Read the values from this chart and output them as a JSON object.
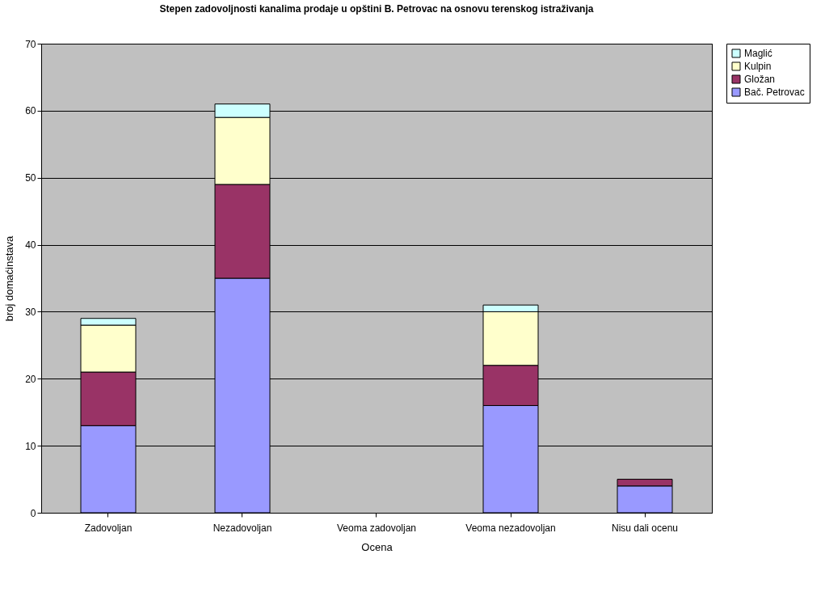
{
  "chart_data": {
    "type": "bar",
    "stacked": true,
    "title": "Stepen zadovoljnosti kanalima prodaje u opštini B. Petrovac na osnovu terenskog istraživanja",
    "xlabel": "Ocena",
    "ylabel": "broj domaćinstava",
    "categories": [
      "Zadovoljan",
      "Nezadovoljan",
      "Veoma zadovoljan",
      "Veoma nezadovoljan",
      "Nisu dali ocenu"
    ],
    "series": [
      {
        "name": "Bač. Petrovac",
        "color": "#9999ff",
        "values": [
          13,
          35,
          0,
          16,
          4
        ]
      },
      {
        "name": "Gložan",
        "color": "#993366",
        "values": [
          8,
          14,
          0,
          6,
          1
        ]
      },
      {
        "name": "Kulpin",
        "color": "#ffffcc",
        "values": [
          7,
          10,
          0,
          8,
          0
        ]
      },
      {
        "name": "Maglić",
        "color": "#ccffff",
        "values": [
          1,
          2,
          0,
          1,
          0
        ]
      }
    ],
    "ylim": [
      0,
      70
    ],
    "yticks": [
      0,
      10,
      20,
      30,
      40,
      50,
      60,
      70
    ],
    "grid": "y",
    "legend": "right"
  }
}
